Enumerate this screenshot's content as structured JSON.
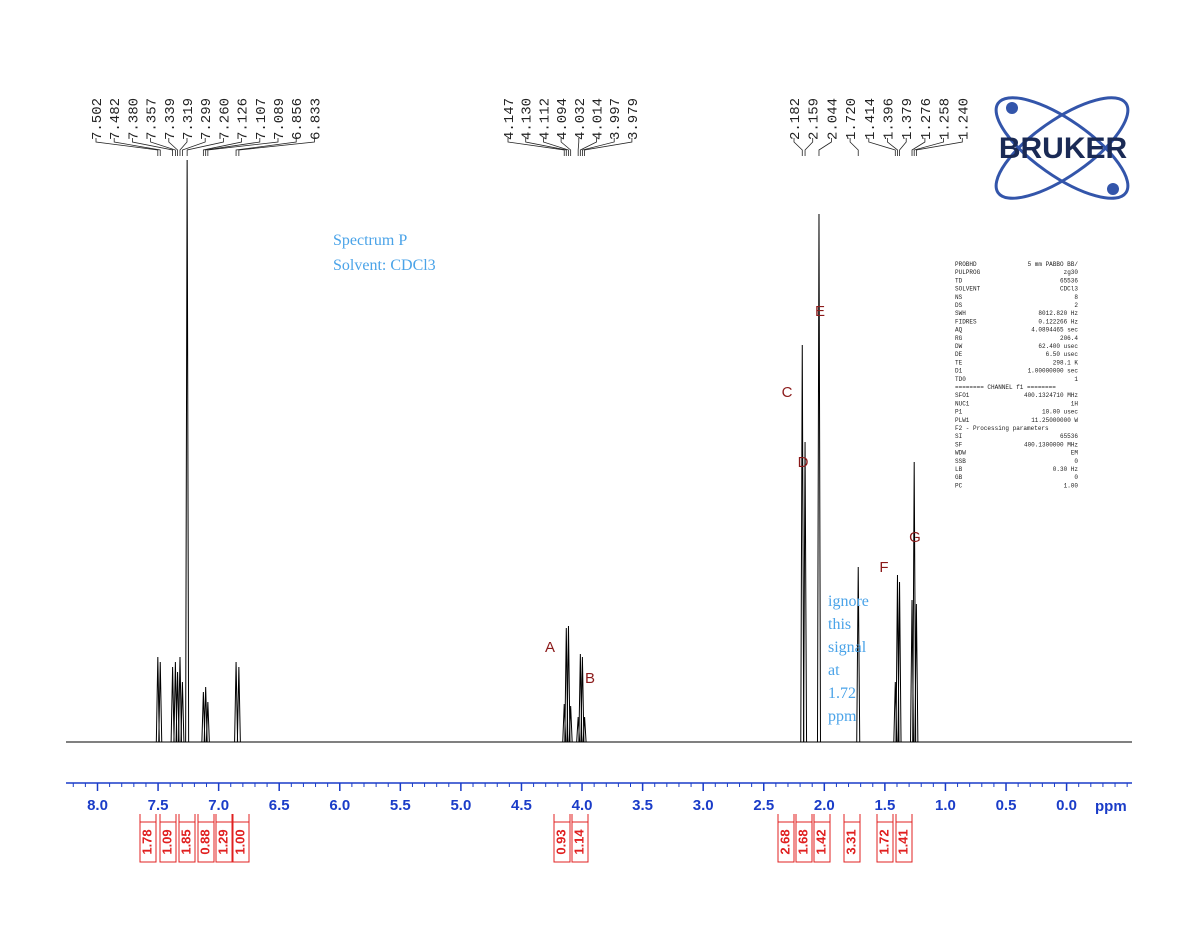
{
  "chart_data": {
    "type": "nmr",
    "xlim": [
      8.26,
      -0.54
    ],
    "xticks": [
      {
        "value": 8.0,
        "label": "8.0"
      },
      {
        "value": 7.5,
        "label": "7.5"
      },
      {
        "value": 7.0,
        "label": "7.0"
      },
      {
        "value": 6.5,
        "label": "6.5"
      },
      {
        "value": 6.0,
        "label": "6.0"
      },
      {
        "value": 5.5,
        "label": "5.5"
      },
      {
        "value": 5.0,
        "label": "5.0"
      },
      {
        "value": 4.5,
        "label": "4.5"
      },
      {
        "value": 4.0,
        "label": "4.0"
      },
      {
        "value": 3.5,
        "label": "3.5"
      },
      {
        "value": 3.0,
        "label": "3.0"
      },
      {
        "value": 2.5,
        "label": "2.5"
      },
      {
        "value": 2.0,
        "label": "2.0"
      },
      {
        "value": 1.5,
        "label": "1.5"
      },
      {
        "value": 1.0,
        "label": "1.0"
      },
      {
        "value": 0.5,
        "label": "0.5"
      },
      {
        "value": 0.0,
        "label": "0.0"
      }
    ],
    "x_label": "ppm",
    "color": "#000000",
    "peaks": {
      "x": [
        7.502,
        7.482,
        7.38,
        7.357,
        7.339,
        7.319,
        7.299,
        7.26,
        7.126,
        7.107,
        7.089,
        6.856,
        6.833,
        4.147,
        4.13,
        4.112,
        4.094,
        4.032,
        4.014,
        3.997,
        3.979,
        2.182,
        2.159,
        2.044,
        1.72,
        1.414,
        1.396,
        1.379,
        1.276,
        1.258,
        1.24
      ],
      "x_labels": [
        "7.502",
        "7.482",
        "7.380",
        "7.357",
        "7.339",
        "7.319",
        "7.299",
        "7.260",
        "7.126",
        "7.107",
        "7.089",
        "6.856",
        "6.833",
        "4.147",
        "4.130",
        "4.112",
        "4.094",
        "4.032",
        "4.014",
        "3.997",
        "3.979",
        "2.182",
        "2.159",
        "2.044",
        "1.720",
        "1.414",
        "1.396",
        "1.379",
        "1.276",
        "1.258",
        "1.240"
      ],
      "values": [
        85,
        80,
        75,
        80,
        70,
        85,
        60,
        582,
        50,
        55,
        40,
        80,
        75,
        38,
        114,
        116,
        36,
        25,
        88,
        85,
        25,
        397,
        300,
        528,
        175,
        60,
        167,
        160,
        142,
        280,
        138
      ]
    },
    "annotations": [
      "A",
      "B",
      "C",
      "D",
      "E",
      "F",
      "G"
    ],
    "integrals": {
      "values": [
        1.78,
        1.09,
        1.85,
        0.88,
        1.29,
        1.0,
        0.93,
        1.14,
        2.68,
        1.68,
        1.42,
        3.31,
        1.72,
        1.41
      ],
      "value_labels": [
        "1.78",
        "1.09",
        "1.85",
        "0.88",
        "1.29",
        "1.00",
        "0.93",
        "1.14",
        "2.68",
        "1.68",
        "1.42",
        "3.31",
        "1.72",
        "1.41"
      ]
    },
    "notes": {
      "title": "Spectrum P",
      "solvent": "Solvent: CDCl3",
      "ignore": [
        "ignore",
        "this",
        "signal",
        "at",
        "1.72",
        "ppm"
      ]
    },
    "logo": "BRUKER",
    "parameters": [
      [
        "PROBHD",
        "5 mm PABBO BB/"
      ],
      [
        "PULPROG",
        "zg30"
      ],
      [
        "TD",
        "65536"
      ],
      [
        "SOLVENT",
        "CDCl3"
      ],
      [
        "NS",
        "8"
      ],
      [
        "DS",
        "2"
      ],
      [
        "SWH",
        "8012.820 Hz"
      ],
      [
        "FIDRES",
        "0.122266 Hz"
      ],
      [
        "AQ",
        "4.0894465 sec"
      ],
      [
        "RG",
        "206.4"
      ],
      [
        "DW",
        "62.400 usec"
      ],
      [
        "DE",
        "6.50 usec"
      ],
      [
        "TE",
        "298.1 K"
      ],
      [
        "D1",
        "1.00000000 sec"
      ],
      [
        "TD0",
        "1"
      ],
      [
        "======== CHANNEL f1 ========",
        ""
      ],
      [
        "SFO1",
        "400.1324710 MHz"
      ],
      [
        "NUC1",
        "1H"
      ],
      [
        "P1",
        "10.00 usec"
      ],
      [
        "PLW1",
        "11.25000000 W"
      ],
      [
        "F2 - Processing parameters",
        ""
      ],
      [
        "SI",
        "65536"
      ],
      [
        "SF",
        "400.1300000 MHz"
      ],
      [
        "WDW",
        "EM"
      ],
      [
        "SSB",
        "0"
      ],
      [
        "LB",
        "0.30 Hz"
      ],
      [
        "GB",
        "0"
      ],
      [
        "PC",
        "1.00"
      ]
    ]
  }
}
